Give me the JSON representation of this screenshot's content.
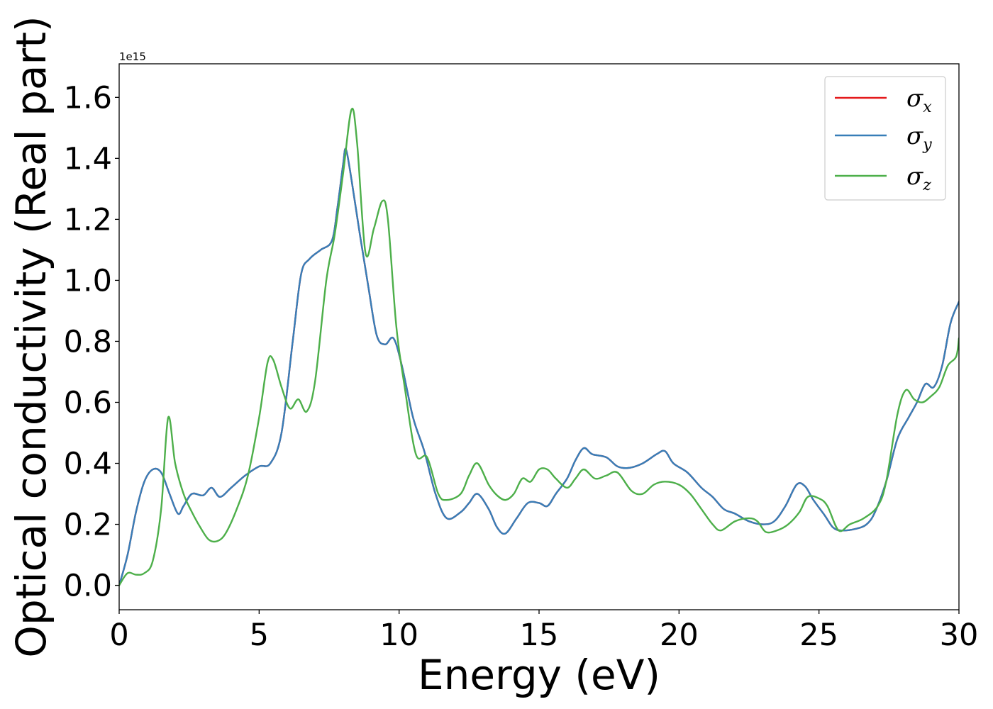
{
  "chart_data": {
    "type": "line",
    "xlabel": "Energy (eV)",
    "ylabel": "Optical conductivity (Real part)",
    "y_offset_label": "1e15",
    "xlim": [
      0,
      30
    ],
    "ylim": [
      -0.08,
      1.71
    ],
    "x_ticks": [
      0,
      5,
      10,
      15,
      20,
      25,
      30
    ],
    "x_tick_labels": [
      "0",
      "5",
      "10",
      "15",
      "20",
      "25",
      "30"
    ],
    "y_ticks": [
      0.0,
      0.2,
      0.4,
      0.6,
      0.8,
      1.0,
      1.2,
      1.4,
      1.6
    ],
    "y_tick_labels": [
      "0.0",
      "0.2",
      "0.4",
      "0.6",
      "0.8",
      "1.0",
      "1.2",
      "1.4",
      "1.6"
    ],
    "grid": false,
    "legend_position": "top-right",
    "series": [
      {
        "name": "σx",
        "legend_base": "σ",
        "legend_sub": "x",
        "color": "#e41a1c",
        "points": [
          [
            0,
            0.0
          ],
          [
            0.3,
            0.1
          ],
          [
            0.6,
            0.24
          ],
          [
            0.9,
            0.34
          ],
          [
            1.2,
            0.38
          ],
          [
            1.5,
            0.37
          ],
          [
            1.8,
            0.3
          ],
          [
            2.1,
            0.235
          ],
          [
            2.3,
            0.26
          ],
          [
            2.6,
            0.3
          ],
          [
            3.0,
            0.295
          ],
          [
            3.3,
            0.32
          ],
          [
            3.6,
            0.29
          ],
          [
            4.0,
            0.32
          ],
          [
            4.5,
            0.36
          ],
          [
            5.0,
            0.39
          ],
          [
            5.4,
            0.4
          ],
          [
            5.8,
            0.5
          ],
          [
            6.2,
            0.8
          ],
          [
            6.5,
            1.02
          ],
          [
            6.8,
            1.07
          ],
          [
            7.2,
            1.1
          ],
          [
            7.6,
            1.13
          ],
          [
            7.8,
            1.24
          ],
          [
            8.0,
            1.38
          ],
          [
            8.1,
            1.43
          ],
          [
            8.3,
            1.33
          ],
          [
            8.6,
            1.15
          ],
          [
            8.9,
            0.98
          ],
          [
            9.2,
            0.82
          ],
          [
            9.5,
            0.79
          ],
          [
            9.8,
            0.81
          ],
          [
            10.1,
            0.72
          ],
          [
            10.5,
            0.55
          ],
          [
            10.9,
            0.44
          ],
          [
            11.3,
            0.3
          ],
          [
            11.7,
            0.22
          ],
          [
            12.2,
            0.24
          ],
          [
            12.5,
            0.27
          ],
          [
            12.8,
            0.3
          ],
          [
            13.2,
            0.25
          ],
          [
            13.5,
            0.19
          ],
          [
            13.8,
            0.17
          ],
          [
            14.2,
            0.22
          ],
          [
            14.6,
            0.27
          ],
          [
            15.0,
            0.27
          ],
          [
            15.3,
            0.26
          ],
          [
            15.6,
            0.3
          ],
          [
            16.0,
            0.35
          ],
          [
            16.3,
            0.41
          ],
          [
            16.6,
            0.45
          ],
          [
            16.9,
            0.43
          ],
          [
            17.4,
            0.42
          ],
          [
            17.8,
            0.39
          ],
          [
            18.2,
            0.385
          ],
          [
            18.7,
            0.4
          ],
          [
            19.2,
            0.43
          ],
          [
            19.5,
            0.44
          ],
          [
            19.8,
            0.4
          ],
          [
            20.3,
            0.37
          ],
          [
            20.8,
            0.32
          ],
          [
            21.2,
            0.29
          ],
          [
            21.6,
            0.25
          ],
          [
            22.0,
            0.235
          ],
          [
            22.5,
            0.21
          ],
          [
            23.0,
            0.2
          ],
          [
            23.4,
            0.21
          ],
          [
            23.8,
            0.26
          ],
          [
            24.2,
            0.33
          ],
          [
            24.5,
            0.325
          ],
          [
            24.8,
            0.28
          ],
          [
            25.2,
            0.23
          ],
          [
            25.5,
            0.19
          ],
          [
            25.8,
            0.18
          ],
          [
            26.3,
            0.185
          ],
          [
            26.7,
            0.2
          ],
          [
            27.0,
            0.24
          ],
          [
            27.4,
            0.34
          ],
          [
            27.8,
            0.48
          ],
          [
            28.2,
            0.55
          ],
          [
            28.5,
            0.6
          ],
          [
            28.8,
            0.66
          ],
          [
            29.1,
            0.65
          ],
          [
            29.4,
            0.72
          ],
          [
            29.7,
            0.86
          ],
          [
            30.0,
            0.93
          ]
        ]
      },
      {
        "name": "σy",
        "legend_base": "σ",
        "legend_sub": "y",
        "color": "#377eb8",
        "points": [
          [
            0,
            0.0
          ],
          [
            0.3,
            0.1
          ],
          [
            0.6,
            0.24
          ],
          [
            0.9,
            0.34
          ],
          [
            1.2,
            0.38
          ],
          [
            1.5,
            0.37
          ],
          [
            1.8,
            0.3
          ],
          [
            2.1,
            0.235
          ],
          [
            2.3,
            0.26
          ],
          [
            2.6,
            0.3
          ],
          [
            3.0,
            0.295
          ],
          [
            3.3,
            0.32
          ],
          [
            3.6,
            0.29
          ],
          [
            4.0,
            0.32
          ],
          [
            4.5,
            0.36
          ],
          [
            5.0,
            0.39
          ],
          [
            5.4,
            0.4
          ],
          [
            5.8,
            0.5
          ],
          [
            6.2,
            0.8
          ],
          [
            6.5,
            1.02
          ],
          [
            6.8,
            1.07
          ],
          [
            7.2,
            1.1
          ],
          [
            7.6,
            1.13
          ],
          [
            7.8,
            1.24
          ],
          [
            8.0,
            1.38
          ],
          [
            8.1,
            1.43
          ],
          [
            8.3,
            1.33
          ],
          [
            8.6,
            1.15
          ],
          [
            8.9,
            0.98
          ],
          [
            9.2,
            0.82
          ],
          [
            9.5,
            0.79
          ],
          [
            9.8,
            0.81
          ],
          [
            10.1,
            0.72
          ],
          [
            10.5,
            0.55
          ],
          [
            10.9,
            0.44
          ],
          [
            11.3,
            0.3
          ],
          [
            11.7,
            0.22
          ],
          [
            12.2,
            0.24
          ],
          [
            12.5,
            0.27
          ],
          [
            12.8,
            0.3
          ],
          [
            13.2,
            0.25
          ],
          [
            13.5,
            0.19
          ],
          [
            13.8,
            0.17
          ],
          [
            14.2,
            0.22
          ],
          [
            14.6,
            0.27
          ],
          [
            15.0,
            0.27
          ],
          [
            15.3,
            0.26
          ],
          [
            15.6,
            0.3
          ],
          [
            16.0,
            0.35
          ],
          [
            16.3,
            0.41
          ],
          [
            16.6,
            0.45
          ],
          [
            16.9,
            0.43
          ],
          [
            17.4,
            0.42
          ],
          [
            17.8,
            0.39
          ],
          [
            18.2,
            0.385
          ],
          [
            18.7,
            0.4
          ],
          [
            19.2,
            0.43
          ],
          [
            19.5,
            0.44
          ],
          [
            19.8,
            0.4
          ],
          [
            20.3,
            0.37
          ],
          [
            20.8,
            0.32
          ],
          [
            21.2,
            0.29
          ],
          [
            21.6,
            0.25
          ],
          [
            22.0,
            0.235
          ],
          [
            22.5,
            0.21
          ],
          [
            23.0,
            0.2
          ],
          [
            23.4,
            0.21
          ],
          [
            23.8,
            0.26
          ],
          [
            24.2,
            0.33
          ],
          [
            24.5,
            0.325
          ],
          [
            24.8,
            0.28
          ],
          [
            25.2,
            0.23
          ],
          [
            25.5,
            0.19
          ],
          [
            25.8,
            0.18
          ],
          [
            26.3,
            0.185
          ],
          [
            26.7,
            0.2
          ],
          [
            27.0,
            0.24
          ],
          [
            27.4,
            0.34
          ],
          [
            27.8,
            0.48
          ],
          [
            28.2,
            0.55
          ],
          [
            28.5,
            0.6
          ],
          [
            28.8,
            0.66
          ],
          [
            29.1,
            0.65
          ],
          [
            29.4,
            0.72
          ],
          [
            29.7,
            0.86
          ],
          [
            30.0,
            0.93
          ]
        ]
      },
      {
        "name": "σz",
        "legend_base": "σ",
        "legend_sub": "z",
        "color": "#4daf4a",
        "points": [
          [
            0,
            0.0
          ],
          [
            0.3,
            0.04
          ],
          [
            0.6,
            0.035
          ],
          [
            0.9,
            0.04
          ],
          [
            1.2,
            0.08
          ],
          [
            1.5,
            0.25
          ],
          [
            1.75,
            0.55
          ],
          [
            2.0,
            0.4
          ],
          [
            2.3,
            0.3
          ],
          [
            2.6,
            0.24
          ],
          [
            2.9,
            0.19
          ],
          [
            3.2,
            0.15
          ],
          [
            3.5,
            0.145
          ],
          [
            3.8,
            0.17
          ],
          [
            4.2,
            0.25
          ],
          [
            4.6,
            0.36
          ],
          [
            5.0,
            0.55
          ],
          [
            5.3,
            0.73
          ],
          [
            5.5,
            0.74
          ],
          [
            5.8,
            0.65
          ],
          [
            6.1,
            0.58
          ],
          [
            6.4,
            0.61
          ],
          [
            6.7,
            0.57
          ],
          [
            7.0,
            0.67
          ],
          [
            7.4,
            1.0
          ],
          [
            7.7,
            1.15
          ],
          [
            8.0,
            1.35
          ],
          [
            8.3,
            1.56
          ],
          [
            8.5,
            1.45
          ],
          [
            8.8,
            1.09
          ],
          [
            9.1,
            1.17
          ],
          [
            9.4,
            1.26
          ],
          [
            9.6,
            1.2
          ],
          [
            9.9,
            0.85
          ],
          [
            10.2,
            0.65
          ],
          [
            10.6,
            0.43
          ],
          [
            11.0,
            0.42
          ],
          [
            11.4,
            0.3
          ],
          [
            11.7,
            0.28
          ],
          [
            12.2,
            0.3
          ],
          [
            12.5,
            0.36
          ],
          [
            12.8,
            0.4
          ],
          [
            13.2,
            0.33
          ],
          [
            13.5,
            0.295
          ],
          [
            13.8,
            0.28
          ],
          [
            14.1,
            0.3
          ],
          [
            14.4,
            0.35
          ],
          [
            14.7,
            0.34
          ],
          [
            15.0,
            0.38
          ],
          [
            15.3,
            0.38
          ],
          [
            15.6,
            0.35
          ],
          [
            16.0,
            0.32
          ],
          [
            16.3,
            0.35
          ],
          [
            16.6,
            0.38
          ],
          [
            17.0,
            0.35
          ],
          [
            17.4,
            0.36
          ],
          [
            17.8,
            0.37
          ],
          [
            18.3,
            0.31
          ],
          [
            18.7,
            0.3
          ],
          [
            19.1,
            0.33
          ],
          [
            19.5,
            0.34
          ],
          [
            20.0,
            0.33
          ],
          [
            20.4,
            0.3
          ],
          [
            20.8,
            0.25
          ],
          [
            21.2,
            0.2
          ],
          [
            21.5,
            0.18
          ],
          [
            22.0,
            0.21
          ],
          [
            22.5,
            0.22
          ],
          [
            22.8,
            0.21
          ],
          [
            23.1,
            0.175
          ],
          [
            23.5,
            0.18
          ],
          [
            23.9,
            0.2
          ],
          [
            24.3,
            0.24
          ],
          [
            24.6,
            0.29
          ],
          [
            25.0,
            0.285
          ],
          [
            25.3,
            0.26
          ],
          [
            25.7,
            0.18
          ],
          [
            26.1,
            0.2
          ],
          [
            26.6,
            0.22
          ],
          [
            27.1,
            0.26
          ],
          [
            27.4,
            0.34
          ],
          [
            27.8,
            0.56
          ],
          [
            28.1,
            0.64
          ],
          [
            28.4,
            0.61
          ],
          [
            28.7,
            0.6
          ],
          [
            29.0,
            0.62
          ],
          [
            29.3,
            0.65
          ],
          [
            29.6,
            0.72
          ],
          [
            29.9,
            0.75
          ],
          [
            30.0,
            0.81
          ]
        ]
      }
    ]
  }
}
